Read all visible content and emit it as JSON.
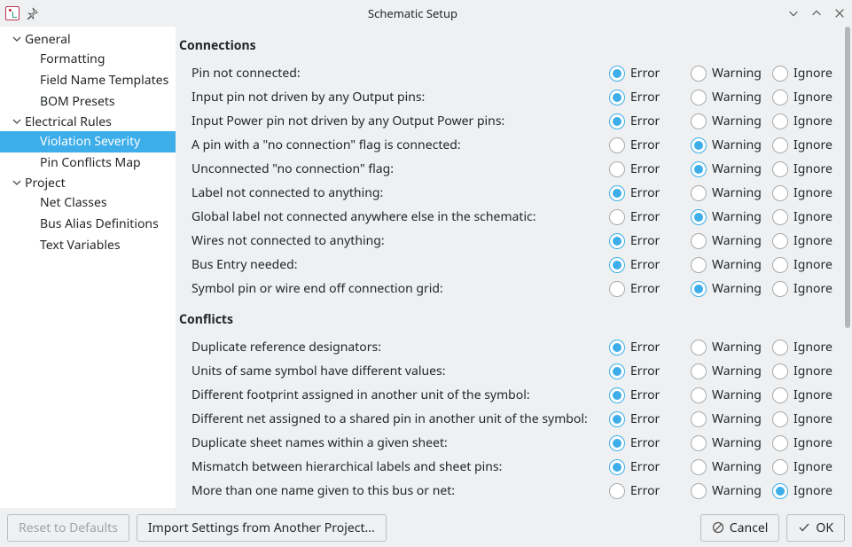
{
  "window": {
    "title": "Schematic Setup"
  },
  "sidebar": {
    "groups": [
      {
        "label": "General",
        "items": [
          {
            "label": "Formatting",
            "selected": false
          },
          {
            "label": "Field Name Templates",
            "selected": false
          },
          {
            "label": "BOM Presets",
            "selected": false
          }
        ]
      },
      {
        "label": "Electrical Rules",
        "items": [
          {
            "label": "Violation Severity",
            "selected": true
          },
          {
            "label": "Pin Conflicts Map",
            "selected": false
          }
        ]
      },
      {
        "label": "Project",
        "items": [
          {
            "label": "Net Classes",
            "selected": false
          },
          {
            "label": "Bus Alias Definitions",
            "selected": false
          },
          {
            "label": "Text Variables",
            "selected": false
          }
        ]
      }
    ]
  },
  "options": {
    "error": "Error",
    "warning": "Warning",
    "ignore": "Ignore"
  },
  "sections": [
    {
      "title": "Connections",
      "rules": [
        {
          "label": "Pin not connected:",
          "value": "error"
        },
        {
          "label": "Input pin not driven by any Output pins:",
          "value": "error"
        },
        {
          "label": "Input Power pin not driven by any Output Power pins:",
          "value": "error"
        },
        {
          "label": "A pin with a \"no connection\" flag is connected:",
          "value": "warning"
        },
        {
          "label": "Unconnected \"no connection\" flag:",
          "value": "warning"
        },
        {
          "label": "Label not connected to anything:",
          "value": "error"
        },
        {
          "label": "Global label not connected anywhere else in the schematic:",
          "value": "warning"
        },
        {
          "label": "Wires not connected to anything:",
          "value": "error"
        },
        {
          "label": "Bus Entry needed:",
          "value": "error"
        },
        {
          "label": "Symbol pin or wire end off connection grid:",
          "value": "warning"
        }
      ]
    },
    {
      "title": "Conflicts",
      "rules": [
        {
          "label": "Duplicate reference designators:",
          "value": "error"
        },
        {
          "label": "Units of same symbol have different values:",
          "value": "error"
        },
        {
          "label": "Different footprint assigned in another unit of the symbol:",
          "value": "error"
        },
        {
          "label": "Different net assigned to a shared pin in another unit of the symbol:",
          "value": "error"
        },
        {
          "label": "Duplicate sheet names within a given sheet:",
          "value": "error"
        },
        {
          "label": "Mismatch between hierarchical labels and sheet pins:",
          "value": "error"
        },
        {
          "label": "More than one name given to this bus or net:",
          "value": "ignore"
        }
      ]
    }
  ],
  "footer": {
    "reset": "Reset to Defaults",
    "import": "Import Settings from Another Project...",
    "cancel": "Cancel",
    "ok": "OK"
  },
  "colors": {
    "accent": "#3daee9",
    "background": "#eff0f1",
    "panel": "#ffffff",
    "text": "#232627",
    "border": "#bcbebf",
    "radio_border": "#a8aaac",
    "scrollbar": "#b3b6b8"
  }
}
